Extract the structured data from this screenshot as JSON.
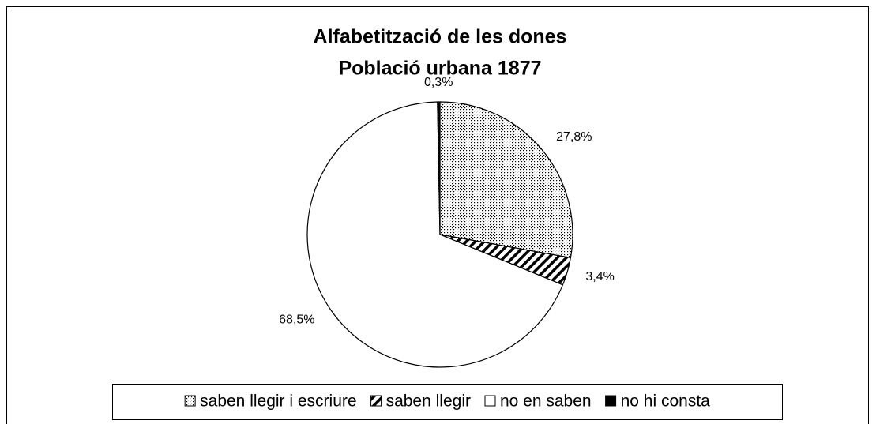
{
  "chart_data": {
    "type": "pie",
    "title": "Alfabetització de les dones",
    "subtitle": "Població urbana 1877",
    "categories": [
      "saben llegir i escriure",
      "saben llegir",
      "no en saben",
      "no hi consta"
    ],
    "values": [
      27.8,
      3.4,
      68.5,
      0.3
    ],
    "value_labels": [
      "27,8%",
      "3,4%",
      "68,5%",
      "0,3%"
    ],
    "legend": "bottom"
  }
}
